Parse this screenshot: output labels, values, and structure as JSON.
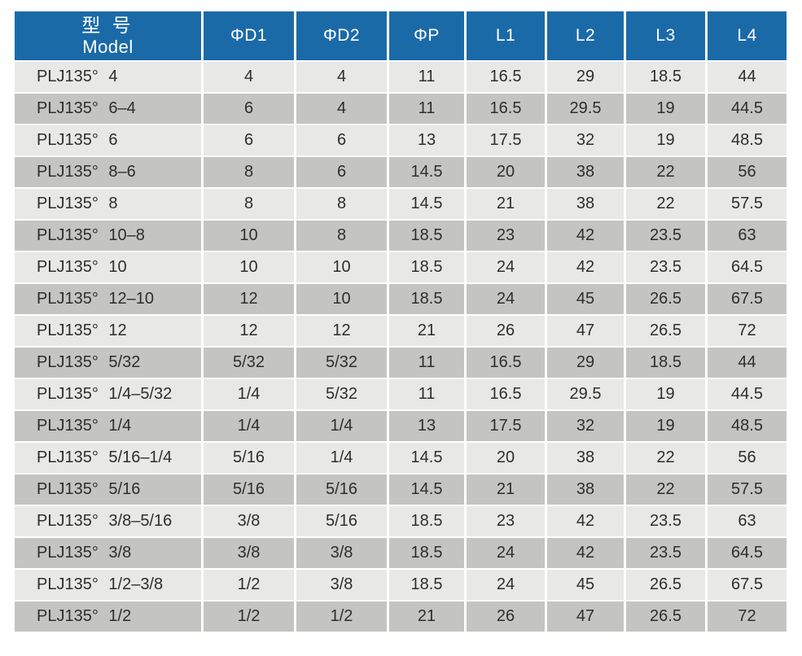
{
  "table": {
    "header": {
      "model_cn": "型 号",
      "model_en": "Model",
      "columns": [
        "ΦD1",
        "ΦD2",
        "ΦP",
        "L1",
        "L2",
        "L3",
        "L4"
      ]
    },
    "rows": [
      {
        "model": "PLJ135° 4",
        "values": [
          "4",
          "4",
          "11",
          "16.5",
          "29",
          "18.5",
          "44"
        ]
      },
      {
        "model": "PLJ135° 6–4",
        "values": [
          "6",
          "4",
          "11",
          "16.5",
          "29.5",
          "19",
          "44.5"
        ]
      },
      {
        "model": "PLJ135° 6",
        "values": [
          "6",
          "6",
          "13",
          "17.5",
          "32",
          "19",
          "48.5"
        ]
      },
      {
        "model": "PLJ135° 8–6",
        "values": [
          "8",
          "6",
          "14.5",
          "20",
          "38",
          "22",
          "56"
        ]
      },
      {
        "model": "PLJ135° 8",
        "values": [
          "8",
          "8",
          "14.5",
          "21",
          "38",
          "22",
          "57.5"
        ]
      },
      {
        "model": "PLJ135° 10–8",
        "values": [
          "10",
          "8",
          "18.5",
          "23",
          "42",
          "23.5",
          "63"
        ]
      },
      {
        "model": "PLJ135° 10",
        "values": [
          "10",
          "10",
          "18.5",
          "24",
          "42",
          "23.5",
          "64.5"
        ]
      },
      {
        "model": "PLJ135° 12–10",
        "values": [
          "12",
          "10",
          "18.5",
          "24",
          "45",
          "26.5",
          "67.5"
        ]
      },
      {
        "model": "PLJ135° 12",
        "values": [
          "12",
          "12",
          "21",
          "26",
          "47",
          "26.5",
          "72"
        ]
      },
      {
        "model": "PLJ135° 5/32",
        "values": [
          "5/32",
          "5/32",
          "11",
          "16.5",
          "29",
          "18.5",
          "44"
        ]
      },
      {
        "model": "PLJ135° 1/4–5/32",
        "values": [
          "1/4",
          "5/32",
          "11",
          "16.5",
          "29.5",
          "19",
          "44.5"
        ]
      },
      {
        "model": "PLJ135° 1/4",
        "values": [
          "1/4",
          "1/4",
          "13",
          "17.5",
          "32",
          "19",
          "48.5"
        ]
      },
      {
        "model": "PLJ135° 5/16–1/4",
        "values": [
          "5/16",
          "1/4",
          "14.5",
          "20",
          "38",
          "22",
          "56"
        ]
      },
      {
        "model": "PLJ135° 5/16",
        "values": [
          "5/16",
          "5/16",
          "14.5",
          "21",
          "38",
          "22",
          "57.5"
        ]
      },
      {
        "model": "PLJ135° 3/8–5/16",
        "values": [
          "3/8",
          "5/16",
          "18.5",
          "23",
          "42",
          "23.5",
          "63"
        ]
      },
      {
        "model": "PLJ135° 3/8",
        "values": [
          "3/8",
          "3/8",
          "18.5",
          "24",
          "42",
          "23.5",
          "64.5"
        ]
      },
      {
        "model": "PLJ135° 1/2–3/8",
        "values": [
          "1/2",
          "3/8",
          "18.5",
          "24",
          "45",
          "26.5",
          "67.5"
        ]
      },
      {
        "model": "PLJ135° 1/2",
        "values": [
          "1/2",
          "1/2",
          "21",
          "26",
          "47",
          "26.5",
          "72"
        ]
      }
    ],
    "colors": {
      "header_bg": "#1b6aa8",
      "header_text": "#ffffff",
      "row_light": "#e8e8e7",
      "row_dark": "#c4c4c3",
      "cell_text": "#2e2e2e"
    }
  }
}
